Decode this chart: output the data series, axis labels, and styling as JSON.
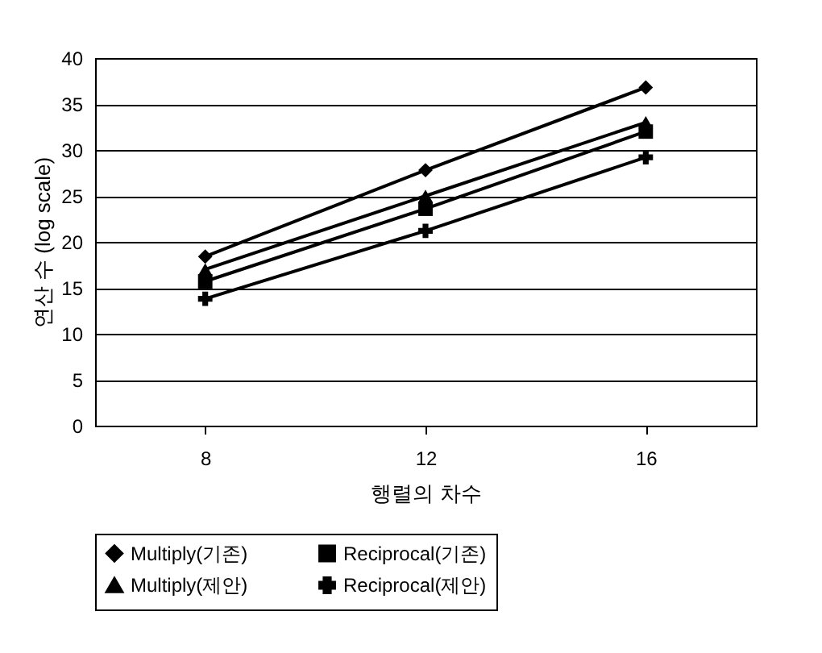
{
  "chart_data": {
    "type": "line",
    "xlabel": "행렬의 차수",
    "ylabel": "연산 수 (log scale)",
    "categories": [
      "8",
      "12",
      "16"
    ],
    "ylim": [
      0,
      40
    ],
    "yticks": [
      0,
      5,
      10,
      15,
      20,
      25,
      30,
      35,
      40
    ],
    "grid": "y",
    "legend": "bottom",
    "line_style": "solid",
    "series": [
      {
        "name": "Multiply(기존)",
        "color": "#000000",
        "marker": "diamond",
        "values": [
          18.4,
          27.8,
          36.8
        ]
      },
      {
        "name": "Reciprocal(기존)",
        "color": "#000000",
        "marker": "square",
        "values": [
          15.7,
          23.6,
          32.0
        ]
      },
      {
        "name": "Multiply(제안)",
        "color": "#000000",
        "marker": "triangle",
        "values": [
          17.0,
          25.0,
          33.0
        ]
      },
      {
        "name": "Reciprocal(제안)",
        "color": "#000000",
        "marker": "cross",
        "values": [
          13.8,
          21.2,
          29.2
        ]
      }
    ]
  }
}
